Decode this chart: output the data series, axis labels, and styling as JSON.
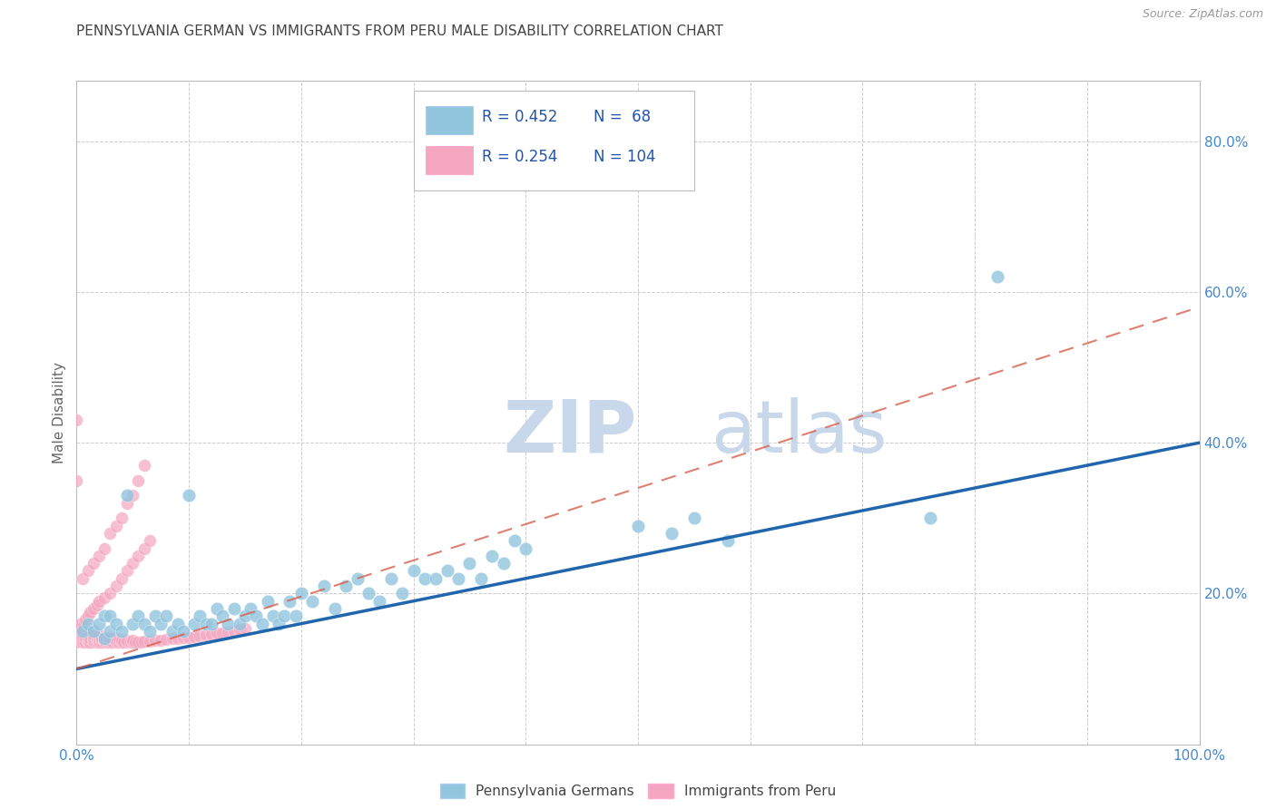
{
  "title": "PENNSYLVANIA GERMAN VS IMMIGRANTS FROM PERU MALE DISABILITY CORRELATION CHART",
  "source": "Source: ZipAtlas.com",
  "ylabel": "Male Disability",
  "xlim": [
    0,
    1.0
  ],
  "ylim": [
    0,
    0.88
  ],
  "xtick_positions": [
    0.0,
    0.1,
    0.2,
    0.3,
    0.4,
    0.5,
    0.6,
    0.7,
    0.8,
    0.9,
    1.0
  ],
  "xticklabels": [
    "0.0%",
    "",
    "",
    "",
    "",
    "",
    "",
    "",
    "",
    "",
    "100.0%"
  ],
  "ytick_positions": [
    0.0,
    0.2,
    0.4,
    0.6,
    0.8
  ],
  "yticklabels_right": [
    "",
    "20.0%",
    "40.0%",
    "60.0%",
    "80.0%"
  ],
  "legend_r1": "R = 0.452",
  "legend_n1": "N =  68",
  "legend_r2": "R = 0.254",
  "legend_n2": "N = 104",
  "blue_color": "#92c5de",
  "pink_color": "#f4a6c0",
  "blue_line_color": "#2166ac",
  "pink_line_color": "#d6604d",
  "watermark_zip": "ZIP",
  "watermark_atlas": "atlas",
  "watermark_color": "#c8d8ea",
  "title_color": "#444444",
  "tick_label_color": "#4488cc",
  "legend_text_color": "#2255aa",
  "blue_line_x": [
    0.0,
    1.0
  ],
  "blue_line_y": [
    0.1,
    0.4
  ],
  "pink_line_x": [
    0.0,
    1.0
  ],
  "pink_line_y": [
    0.1,
    0.58
  ],
  "blue_scatter_x": [
    0.005,
    0.01,
    0.015,
    0.02,
    0.025,
    0.025,
    0.03,
    0.03,
    0.035,
    0.04,
    0.045,
    0.05,
    0.055,
    0.06,
    0.065,
    0.07,
    0.075,
    0.08,
    0.085,
    0.09,
    0.095,
    0.1,
    0.105,
    0.11,
    0.115,
    0.12,
    0.125,
    0.13,
    0.135,
    0.14,
    0.145,
    0.15,
    0.155,
    0.16,
    0.165,
    0.17,
    0.175,
    0.18,
    0.185,
    0.19,
    0.195,
    0.2,
    0.21,
    0.22,
    0.23,
    0.24,
    0.25,
    0.26,
    0.27,
    0.28,
    0.29,
    0.3,
    0.31,
    0.32,
    0.33,
    0.34,
    0.35,
    0.36,
    0.37,
    0.38,
    0.39,
    0.4,
    0.5,
    0.53,
    0.55,
    0.58,
    0.76,
    0.82
  ],
  "blue_scatter_y": [
    0.15,
    0.16,
    0.15,
    0.16,
    0.14,
    0.17,
    0.15,
    0.17,
    0.16,
    0.15,
    0.33,
    0.16,
    0.17,
    0.16,
    0.15,
    0.17,
    0.16,
    0.17,
    0.15,
    0.16,
    0.15,
    0.33,
    0.16,
    0.17,
    0.16,
    0.16,
    0.18,
    0.17,
    0.16,
    0.18,
    0.16,
    0.17,
    0.18,
    0.17,
    0.16,
    0.19,
    0.17,
    0.16,
    0.17,
    0.19,
    0.17,
    0.2,
    0.19,
    0.21,
    0.18,
    0.21,
    0.22,
    0.2,
    0.19,
    0.22,
    0.2,
    0.23,
    0.22,
    0.22,
    0.23,
    0.22,
    0.24,
    0.22,
    0.25,
    0.24,
    0.27,
    0.26,
    0.29,
    0.28,
    0.3,
    0.27,
    0.3,
    0.62
  ],
  "pink_scatter_x": [
    0.0,
    0.0,
    0.0,
    0.0,
    0.0,
    0.005,
    0.005,
    0.005,
    0.008,
    0.008,
    0.01,
    0.01,
    0.01,
    0.01,
    0.012,
    0.012,
    0.015,
    0.015,
    0.015,
    0.015,
    0.018,
    0.018,
    0.02,
    0.02,
    0.02,
    0.02,
    0.022,
    0.022,
    0.025,
    0.025,
    0.025,
    0.028,
    0.028,
    0.03,
    0.03,
    0.03,
    0.032,
    0.032,
    0.035,
    0.035,
    0.038,
    0.038,
    0.04,
    0.04,
    0.042,
    0.045,
    0.045,
    0.048,
    0.05,
    0.05,
    0.052,
    0.055,
    0.058,
    0.06,
    0.065,
    0.07,
    0.075,
    0.08,
    0.085,
    0.09,
    0.095,
    0.1,
    0.105,
    0.11,
    0.115,
    0.12,
    0.125,
    0.13,
    0.135,
    0.14,
    0.145,
    0.15,
    0.003,
    0.003,
    0.006,
    0.008,
    0.01,
    0.012,
    0.015,
    0.018,
    0.02,
    0.025,
    0.03,
    0.035,
    0.04,
    0.045,
    0.05,
    0.055,
    0.06,
    0.065,
    0.005,
    0.01,
    0.015,
    0.02,
    0.025,
    0.03,
    0.035,
    0.04,
    0.045,
    0.05,
    0.055,
    0.06,
    0.0,
    0.0
  ],
  "pink_scatter_y": [
    0.135,
    0.14,
    0.143,
    0.146,
    0.148,
    0.135,
    0.14,
    0.145,
    0.136,
    0.141,
    0.135,
    0.138,
    0.142,
    0.146,
    0.136,
    0.14,
    0.135,
    0.138,
    0.141,
    0.145,
    0.136,
    0.14,
    0.135,
    0.138,
    0.141,
    0.145,
    0.136,
    0.14,
    0.135,
    0.138,
    0.142,
    0.136,
    0.14,
    0.135,
    0.138,
    0.142,
    0.136,
    0.14,
    0.135,
    0.138,
    0.136,
    0.14,
    0.135,
    0.138,
    0.136,
    0.135,
    0.138,
    0.136,
    0.135,
    0.138,
    0.136,
    0.136,
    0.136,
    0.137,
    0.137,
    0.138,
    0.138,
    0.139,
    0.14,
    0.14,
    0.141,
    0.142,
    0.143,
    0.144,
    0.145,
    0.146,
    0.147,
    0.148,
    0.149,
    0.15,
    0.152,
    0.153,
    0.155,
    0.16,
    0.157,
    0.165,
    0.17,
    0.175,
    0.18,
    0.185,
    0.19,
    0.195,
    0.2,
    0.21,
    0.22,
    0.23,
    0.24,
    0.25,
    0.26,
    0.27,
    0.22,
    0.23,
    0.24,
    0.25,
    0.26,
    0.28,
    0.29,
    0.3,
    0.32,
    0.33,
    0.35,
    0.37,
    0.35,
    0.43
  ]
}
